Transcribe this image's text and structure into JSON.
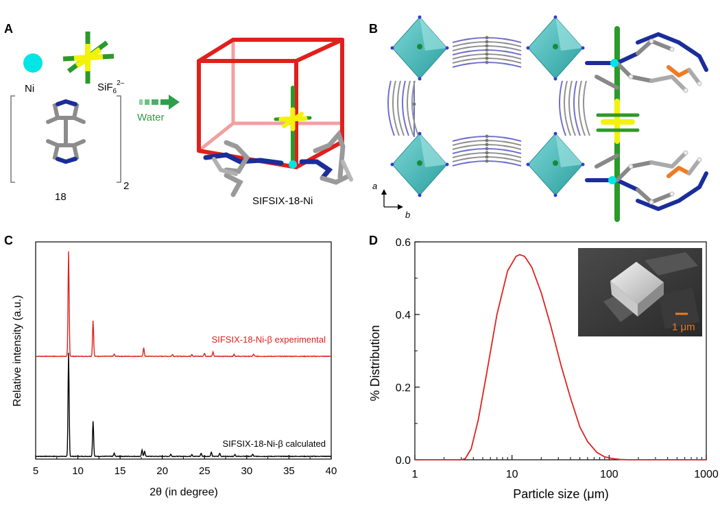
{
  "panels": {
    "a": {
      "letter": "A",
      "ni_label": "Ni",
      "sif6_label": "SiF",
      "sif6_sub": "6",
      "sif6_sup": "2–",
      "ligand_label": "18",
      "ligand_count": "2",
      "arrow_label": "Water",
      "product_label": "SIFSIX-18-Ni"
    },
    "b": {
      "letter": "B",
      "axis_a": "a",
      "axis_b": "b"
    },
    "c": {
      "letter": "C",
      "xlabel": "2θ (in degree)",
      "ylabel": "Relative intensity (a.u.)",
      "series_experimental_label": "SIFSIX-18-Ni-β experimental",
      "series_calculated_label": "SIFSIX-18-Ni-β calculated"
    },
    "d": {
      "letter": "D",
      "xlabel": "Particle size (μm)",
      "ylabel": "% Distribution",
      "scale_label": "1 μm"
    }
  },
  "colors": {
    "red": "#e0201c",
    "ni": "#00e5e5",
    "sif6_yellow": "#f2f20a",
    "sif6_green": "#2a9a2a",
    "nitrogen_blue": "#1a2d9a",
    "carbon_gray": "#8c8c8c",
    "arrow_green": "#2e9e48",
    "octahedron": "#3fb8b8",
    "orange": "#ef7b22"
  },
  "chart_data": [
    {
      "type": "line",
      "panel": "C",
      "xlabel": "2θ (in degree)",
      "ylabel": "Relative intensity (a.u.)",
      "xlim": [
        5,
        40
      ],
      "xticks": [
        5,
        10,
        15,
        20,
        25,
        30,
        35,
        40
      ],
      "series": [
        {
          "name": "SIFSIX-18-Ni-β experimental",
          "color": "#e0201c",
          "peaks": [
            [
              8.9,
              1.0
            ],
            [
              11.8,
              0.34
            ],
            [
              14.3,
              0.02
            ],
            [
              17.8,
              0.08
            ],
            [
              21.2,
              0.02
            ],
            [
              23.5,
              0.02
            ],
            [
              25.0,
              0.03
            ],
            [
              26.0,
              0.04
            ],
            [
              28.5,
              0.02
            ],
            [
              30.8,
              0.02
            ]
          ]
        },
        {
          "name": "SIFSIX-18-Ni-β calculated",
          "color": "#000000",
          "peaks": [
            [
              8.9,
              1.0
            ],
            [
              11.8,
              0.34
            ],
            [
              14.3,
              0.03
            ],
            [
              17.6,
              0.06
            ],
            [
              17.9,
              0.05
            ],
            [
              21.0,
              0.02
            ],
            [
              23.5,
              0.02
            ],
            [
              24.6,
              0.03
            ],
            [
              25.8,
              0.04
            ],
            [
              26.8,
              0.03
            ],
            [
              28.6,
              0.02
            ],
            [
              30.7,
              0.02
            ]
          ]
        }
      ]
    },
    {
      "type": "line",
      "panel": "D",
      "xlabel": "Particle size (μm)",
      "ylabel": "% Distribution",
      "xscale": "log",
      "xlim": [
        1,
        1000
      ],
      "ylim": [
        0,
        0.6
      ],
      "xticks": [
        1,
        10,
        100,
        1000
      ],
      "yticks": [
        0.0,
        0.2,
        0.4,
        0.6
      ],
      "series": [
        {
          "color": "#e0201c",
          "x": [
            1,
            2,
            3,
            3.3,
            3.8,
            4.5,
            5.5,
            7,
            9,
            11,
            12,
            13.5,
            16,
            20,
            25,
            32,
            40,
            50,
            60,
            75,
            90,
            110,
            130,
            160,
            200,
            1000
          ],
          "y": [
            0,
            0,
            0,
            0.003,
            0.03,
            0.11,
            0.24,
            0.4,
            0.52,
            0.56,
            0.565,
            0.56,
            0.53,
            0.46,
            0.37,
            0.26,
            0.17,
            0.09,
            0.05,
            0.02,
            0.008,
            0.003,
            0.001,
            0,
            0,
            0
          ]
        }
      ]
    }
  ]
}
